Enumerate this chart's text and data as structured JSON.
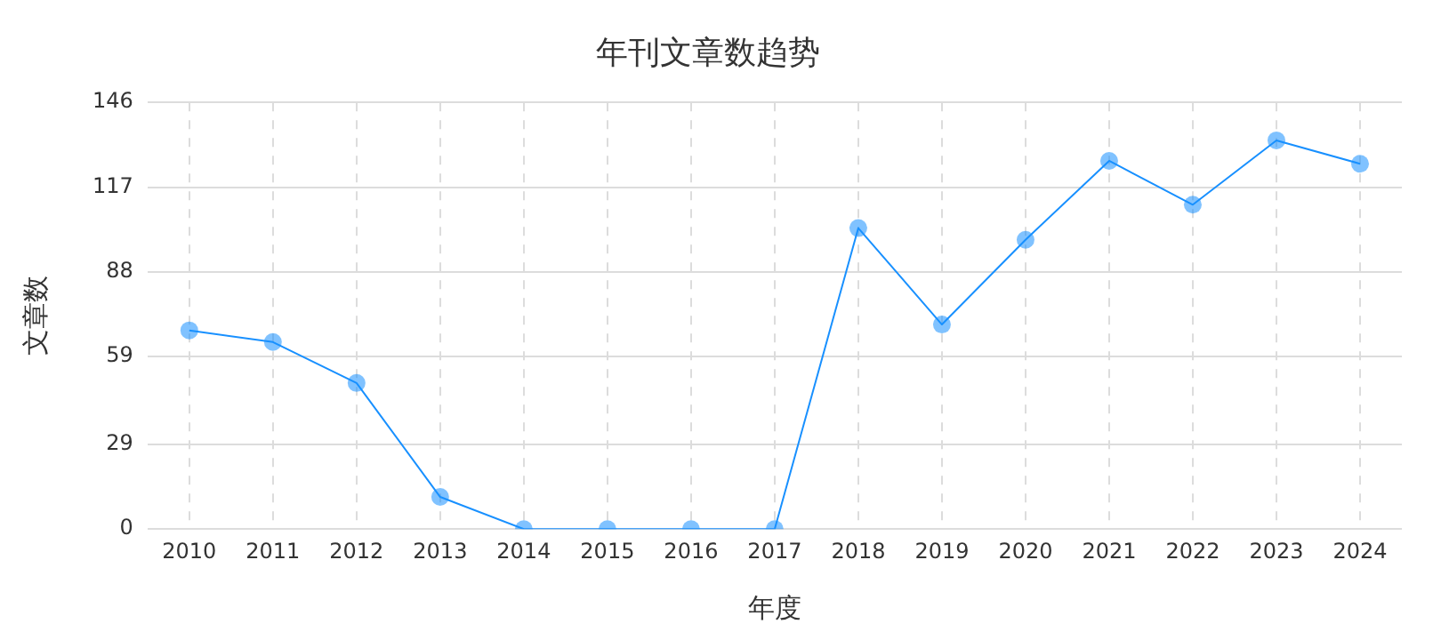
{
  "chart_data": {
    "type": "line",
    "title": "年刊文章数趋势",
    "xlabel": "年度",
    "ylabel": "文章数",
    "categories": [
      "2010",
      "2011",
      "2012",
      "2013",
      "2014",
      "2015",
      "2016",
      "2017",
      "2018",
      "2019",
      "2020",
      "2021",
      "2022",
      "2023",
      "2024"
    ],
    "series": [
      {
        "color": "#1890ff",
        "values": [
          68,
          64,
          50,
          11,
          0,
          0,
          0,
          0,
          103,
          70,
          99,
          126,
          111,
          133,
          125
        ]
      }
    ],
    "ylim": [
      0,
      146
    ],
    "yticks": [
      0,
      29,
      59,
      88,
      117,
      146
    ],
    "grid": true,
    "legend": false,
    "marker": "circle",
    "line_style": "solid"
  }
}
